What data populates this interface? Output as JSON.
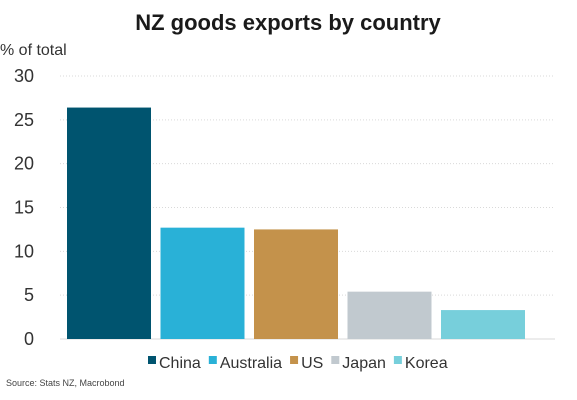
{
  "chart_data": {
    "type": "bar",
    "title": "NZ goods exports by country",
    "ylabel": "% of total",
    "categories": [
      "China",
      "Australia",
      "US",
      "Japan",
      "Korea"
    ],
    "values": [
      26.4,
      12.7,
      12.5,
      5.4,
      3.3
    ],
    "colors": [
      "#00546f",
      "#29b1d7",
      "#c4924b",
      "#c1c9cf",
      "#77cfdb"
    ],
    "ylim": [
      0,
      30
    ],
    "yticks": [
      0,
      5,
      10,
      15,
      20,
      25,
      30
    ],
    "grid": true,
    "legend_position": "bottom"
  },
  "source": "Source: Stats NZ, Macrobond"
}
